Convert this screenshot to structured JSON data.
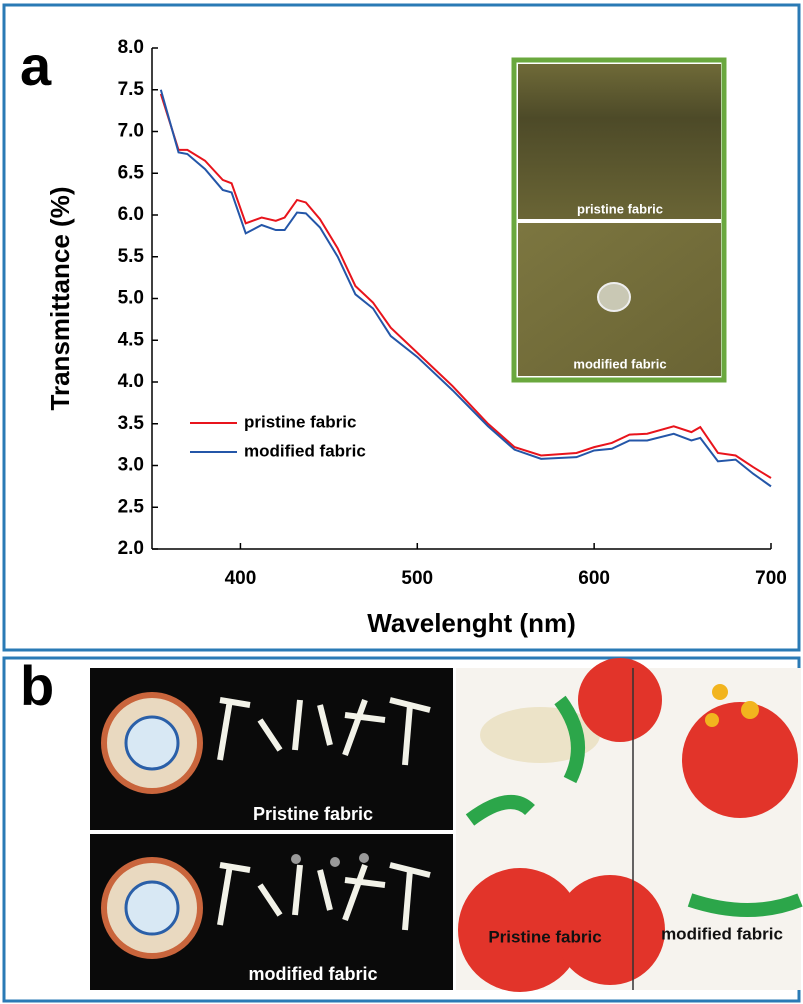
{
  "chart_data": {
    "type": "line",
    "panel_label": "a",
    "xlabel": "Wavelenght (nm)",
    "ylabel": "Transmittance (%)",
    "xlim": [
      350,
      700
    ],
    "ylim": [
      2,
      8
    ],
    "xticks": [
      400,
      500,
      600,
      700
    ],
    "yticks": [
      {
        "value": 2,
        "label": "2.0"
      },
      2.5,
      {
        "value": 3,
        "label": "3.0"
      },
      3.5,
      {
        "value": 4,
        "label": "4.0"
      },
      4.5,
      {
        "value": 5,
        "label": "5.0"
      },
      5.5,
      {
        "value": 6,
        "label": "6.0"
      },
      6.5,
      {
        "value": 7,
        "label": "7.0"
      },
      7.5,
      {
        "value": 8,
        "label": "8.0"
      }
    ],
    "x": [
      355,
      365,
      370,
      380,
      390,
      395,
      403,
      412,
      420,
      425,
      432,
      437,
      445,
      455,
      465,
      475,
      485,
      500,
      520,
      540,
      555,
      570,
      590,
      600,
      610,
      620,
      630,
      645,
      655,
      660,
      670,
      680,
      690,
      700
    ],
    "series": [
      {
        "name": "pristine fabric",
        "color": "#e8141c",
        "values": [
          7.45,
          6.78,
          6.78,
          6.65,
          6.42,
          6.38,
          5.9,
          5.97,
          5.93,
          5.97,
          6.18,
          6.15,
          5.95,
          5.6,
          5.15,
          4.95,
          4.65,
          4.35,
          3.95,
          3.5,
          3.22,
          3.12,
          3.15,
          3.22,
          3.27,
          3.37,
          3.38,
          3.47,
          3.4,
          3.46,
          3.15,
          3.12,
          2.98,
          2.85
        ]
      },
      {
        "name": "modified fabric",
        "color": "#2456a8",
        "values": [
          7.5,
          6.75,
          6.73,
          6.55,
          6.3,
          6.27,
          5.78,
          5.88,
          5.82,
          5.82,
          6.03,
          6.02,
          5.85,
          5.5,
          5.05,
          4.88,
          4.55,
          4.3,
          3.9,
          3.47,
          3.19,
          3.08,
          3.1,
          3.18,
          3.2,
          3.3,
          3.3,
          3.38,
          3.3,
          3.33,
          3.05,
          3.07,
          2.9,
          2.75
        ]
      }
    ],
    "inset_labels": [
      "pristine fabric",
      "modified fabric"
    ]
  },
  "panel_b": {
    "panel_label": "b",
    "left_labels": [
      "Pristine fabric",
      "modified fabric"
    ],
    "right_labels": [
      "Pristine fabric",
      "modified fabric"
    ]
  }
}
